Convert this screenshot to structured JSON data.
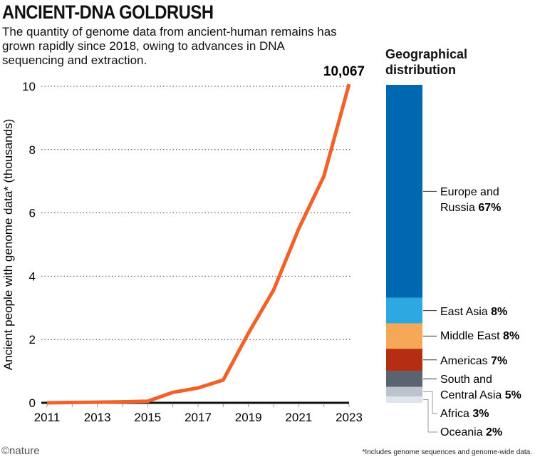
{
  "title": "ANCIENT-DNA GOLDRUSH",
  "subtitle": "The quantity of genome data from ancient-human remains has grown rapidly since 2018, owing to advances in DNA sequencing and extraction.",
  "footnote": "*Includes genome sequences and genome-wide data.",
  "logo": "©nature",
  "chart_data": [
    {
      "type": "line",
      "ylabel": "Ancient people with genome data* (thousands)",
      "xlim": [
        2011,
        2023
      ],
      "ylim": [
        0,
        10
      ],
      "xticks": [
        "2011",
        "2013",
        "2015",
        "2017",
        "2019",
        "2021",
        "2023"
      ],
      "yticks": [
        "0",
        "2",
        "4",
        "6",
        "8",
        "10"
      ],
      "grid": "horizontal dotted",
      "x": [
        2011,
        2012,
        2013,
        2014,
        2015,
        2016,
        2017,
        2018,
        2019,
        2020,
        2021,
        2022,
        2023
      ],
      "y": [
        0.0,
        0.01,
        0.02,
        0.03,
        0.05,
        0.33,
        0.47,
        0.72,
        2.2,
        3.56,
        5.5,
        7.16,
        10.067
      ],
      "annotation": "10,067",
      "color": "#f0622a"
    },
    {
      "type": "bar",
      "title": "Geographical distribution",
      "stacked": true,
      "segments": [
        {
          "name": "Europe and Russia",
          "label": "67%",
          "value": 67,
          "color": "#0068b0"
        },
        {
          "name": "East Asia",
          "label": "8%",
          "value": 8,
          "color": "#2ea8e0"
        },
        {
          "name": "Middle East",
          "label": "8%",
          "value": 8,
          "color": "#f5a857"
        },
        {
          "name": "Americas",
          "label": "7%",
          "value": 7,
          "color": "#b52e13"
        },
        {
          "name": "South and Central Asia",
          "label": "5%",
          "value": 5,
          "color": "#5a6470"
        },
        {
          "name": "Africa",
          "label": "3%",
          "value": 3,
          "color": "#bcc3cb"
        },
        {
          "name": "Oceania",
          "label": "2%",
          "value": 2,
          "color": "#dfe5ec"
        }
      ]
    }
  ]
}
